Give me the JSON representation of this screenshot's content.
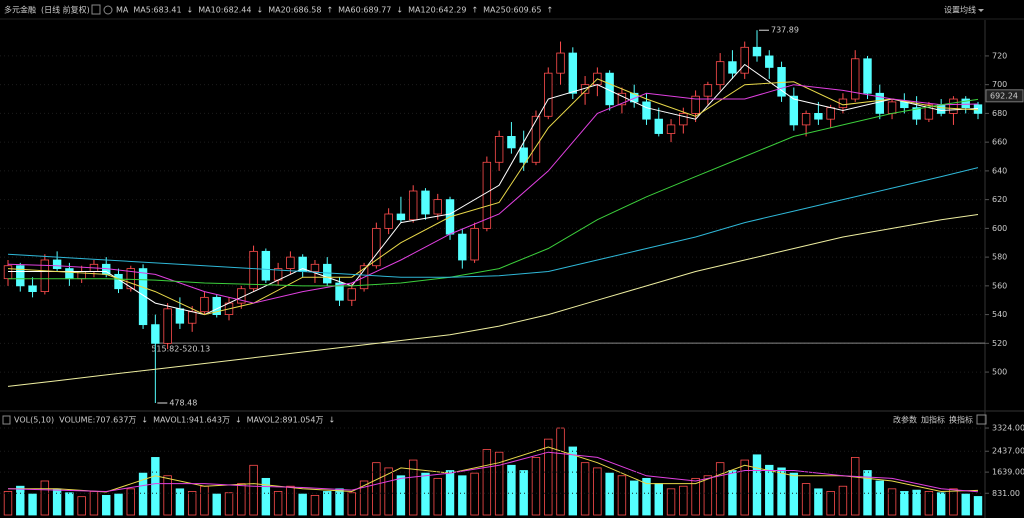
{
  "chart_data": [
    {
      "type": "candlestick",
      "title": "多元金融",
      "subtitle": "(日线 前复权)",
      "indicator": "MA",
      "settings_button": "设置均线",
      "up_color": "#ff4d4d",
      "down_color": "#54ffff",
      "open": [
        565,
        574,
        560,
        556,
        578,
        572,
        565,
        570,
        575,
        568,
        558,
        572,
        533,
        520,
        544,
        534,
        542,
        552,
        540,
        548,
        558,
        584,
        564,
        572,
        580,
        570,
        575,
        562,
        550,
        558,
        574,
        600,
        610,
        606,
        626,
        610,
        620,
        596,
        578,
        600,
        646,
        664,
        656,
        646,
        678,
        708,
        722,
        694,
        700,
        708,
        686,
        694,
        688,
        676,
        666,
        672,
        680,
        692,
        700,
        716,
        708,
        726,
        720,
        712,
        692,
        672,
        680,
        676,
        684,
        690,
        718,
        694,
        680,
        688,
        684,
        676,
        686,
        680,
        690,
        686
      ],
      "high": [
        578,
        576,
        566,
        582,
        584,
        576,
        574,
        578,
        580,
        572,
        574,
        575,
        540,
        548,
        552,
        546,
        556,
        554,
        552,
        560,
        588,
        586,
        576,
        584,
        582,
        578,
        580,
        566,
        562,
        576,
        604,
        614,
        622,
        630,
        628,
        624,
        622,
        600,
        604,
        650,
        668,
        674,
        668,
        682,
        712,
        730,
        726,
        706,
        712,
        710,
        698,
        700,
        694,
        684,
        676,
        684,
        696,
        702,
        722,
        724,
        730,
        737.89,
        724,
        716,
        698,
        682,
        688,
        686,
        694,
        724,
        720,
        700,
        690,
        694,
        692,
        688,
        690,
        692,
        692,
        688
      ],
      "low": [
        560,
        556,
        552,
        554,
        570,
        560,
        562,
        566,
        566,
        555,
        556,
        530,
        478.48,
        516,
        530,
        528,
        540,
        538,
        536,
        544,
        556,
        562,
        560,
        568,
        566,
        562,
        560,
        546,
        546,
        556,
        572,
        596,
        604,
        604,
        606,
        606,
        592,
        572,
        576,
        598,
        640,
        652,
        640,
        644,
        676,
        700,
        690,
        686,
        692,
        682,
        680,
        684,
        672,
        664,
        660,
        666,
        674,
        686,
        696,
        704,
        704,
        716,
        704,
        688,
        668,
        664,
        672,
        670,
        680,
        688,
        690,
        676,
        676,
        680,
        672,
        674,
        678,
        672,
        680,
        676
      ],
      "close": [
        574,
        560,
        556,
        578,
        572,
        565,
        570,
        575,
        568,
        558,
        572,
        533,
        520,
        544,
        534,
        542,
        552,
        540,
        548,
        558,
        584,
        564,
        572,
        580,
        570,
        575,
        562,
        550,
        558,
        574,
        600,
        610,
        606,
        626,
        610,
        620,
        596,
        578,
        600,
        646,
        664,
        656,
        646,
        678,
        708,
        722,
        694,
        700,
        708,
        686,
        694,
        688,
        676,
        666,
        672,
        680,
        692,
        700,
        716,
        708,
        726,
        720,
        712,
        692,
        672,
        680,
        676,
        684,
        690,
        718,
        694,
        680,
        688,
        684,
        676,
        686,
        680,
        690,
        684,
        680
      ],
      "ma_x": [
        0,
        4,
        8,
        12,
        16,
        20,
        24,
        28,
        32,
        36,
        40,
        44,
        48,
        52,
        56,
        60,
        64,
        68,
        72,
        76,
        79
      ],
      "series": [
        {
          "label": "MA5:683.41",
          "trend": "↓",
          "color": "#ffffff",
          "values": [
            570,
            570,
            570,
            548,
            540,
            556,
            572,
            560,
            604,
            610,
            630,
            690,
            700,
            684,
            676,
            714,
            690,
            682,
            690,
            682,
            683.41
          ]
        },
        {
          "label": "MA10:682.44",
          "trend": "↓",
          "color": "#e8d84a",
          "values": [
            572,
            570,
            568,
            556,
            540,
            548,
            566,
            566,
            590,
            608,
            618,
            670,
            704,
            690,
            678,
            700,
            702,
            686,
            690,
            684,
            682.44
          ]
        },
        {
          "label": "MA20:686.58",
          "trend": "↑",
          "color": "#e040e0",
          "values": [
            575,
            574,
            572,
            568,
            556,
            548,
            556,
            562,
            578,
            596,
            610,
            640,
            680,
            694,
            690,
            690,
            700,
            696,
            690,
            686,
            686.58
          ]
        },
        {
          "label": "MA60:689.77",
          "trend": "↓",
          "color": "#3ccf3c",
          "values": [
            565,
            565,
            565,
            564,
            562,
            561,
            560,
            560,
            562,
            566,
            572,
            586,
            606,
            622,
            636,
            650,
            664,
            672,
            680,
            686,
            689.77
          ]
        },
        {
          "label": "MA120:642.29",
          "trend": "↑",
          "color": "#2fb8d8",
          "values": [
            582,
            580,
            578,
            576,
            574,
            572,
            570,
            568,
            566,
            566,
            567,
            570,
            578,
            586,
            594,
            604,
            612,
            620,
            628,
            636,
            642.29
          ]
        },
        {
          "label": "MA250:609.65",
          "trend": "↑",
          "color": "#eeeea0",
          "values": [
            490,
            494,
            498,
            502,
            506,
            510,
            514,
            518,
            522,
            526,
            532,
            540,
            550,
            560,
            570,
            578,
            586,
            594,
            600,
            606,
            609.65
          ]
        }
      ],
      "reference": {
        "label": "515.82-520.13",
        "value": 520.13
      },
      "last_price": 692.24,
      "ylim": [
        475,
        745
      ],
      "yticks": [
        500,
        520,
        540,
        560,
        580,
        600,
        620,
        640,
        660,
        680,
        700,
        720
      ],
      "grid": true
    },
    {
      "type": "bar",
      "title": "VOL(5,10)",
      "label": "VOLUME:707.637万",
      "trend": "↓",
      "values": [
        900,
        1100,
        800,
        1300,
        1000,
        850,
        700,
        900,
        750,
        800,
        1000,
        1600,
        2200,
        1500,
        1000,
        900,
        1100,
        800,
        850,
        1200,
        1900,
        1400,
        900,
        1100,
        800,
        750,
        900,
        1000,
        850,
        1300,
        2000,
        1800,
        1500,
        2100,
        1600,
        1400,
        1700,
        1500,
        1600,
        2500,
        2400,
        1900,
        1700,
        2200,
        2900,
        3324,
        2600,
        2000,
        1800,
        1600,
        1500,
        1300,
        1400,
        1200,
        1000,
        1100,
        1400,
        1500,
        2000,
        1700,
        2100,
        2300,
        1900,
        1800,
        1600,
        1200,
        1000,
        900,
        1100,
        2200,
        1700,
        1300,
        1000,
        900,
        950,
        900,
        850,
        1000,
        800,
        707.637
      ],
      "ma_x": [
        0,
        4,
        8,
        12,
        16,
        20,
        24,
        28,
        32,
        36,
        40,
        44,
        48,
        52,
        56,
        60,
        64,
        68,
        72,
        76,
        79
      ],
      "series": [
        {
          "label": "MAVOL1:941.643万",
          "trend": "↓",
          "color": "#e8d84a",
          "values": [
            1000,
            1000,
            880,
            1500,
            1100,
            1200,
            1000,
            900,
            1800,
            1600,
            2000,
            2600,
            2000,
            1200,
            1200,
            1900,
            1500,
            1500,
            1300,
            900,
            941.643
          ]
        },
        {
          "label": "MAVOL2:891.054万",
          "trend": "↓",
          "color": "#e040e0",
          "values": [
            1000,
            950,
            900,
            1200,
            1200,
            1100,
            1050,
            950,
            1400,
            1600,
            1900,
            2400,
            2200,
            1500,
            1300,
            1700,
            1700,
            1500,
            1400,
            1000,
            891.054
          ]
        }
      ],
      "buttons": [
        "改参数",
        "加指标",
        "换指标"
      ],
      "ylim": [
        0,
        3440
      ],
      "yticks": [
        {
          "value": 831,
          "label": "831.00"
        },
        {
          "value": 1639,
          "label": "1639.00"
        },
        {
          "value": 2437,
          "label": "2437.00"
        },
        {
          "value": 3324,
          "label": "3324.00"
        }
      ]
    }
  ]
}
